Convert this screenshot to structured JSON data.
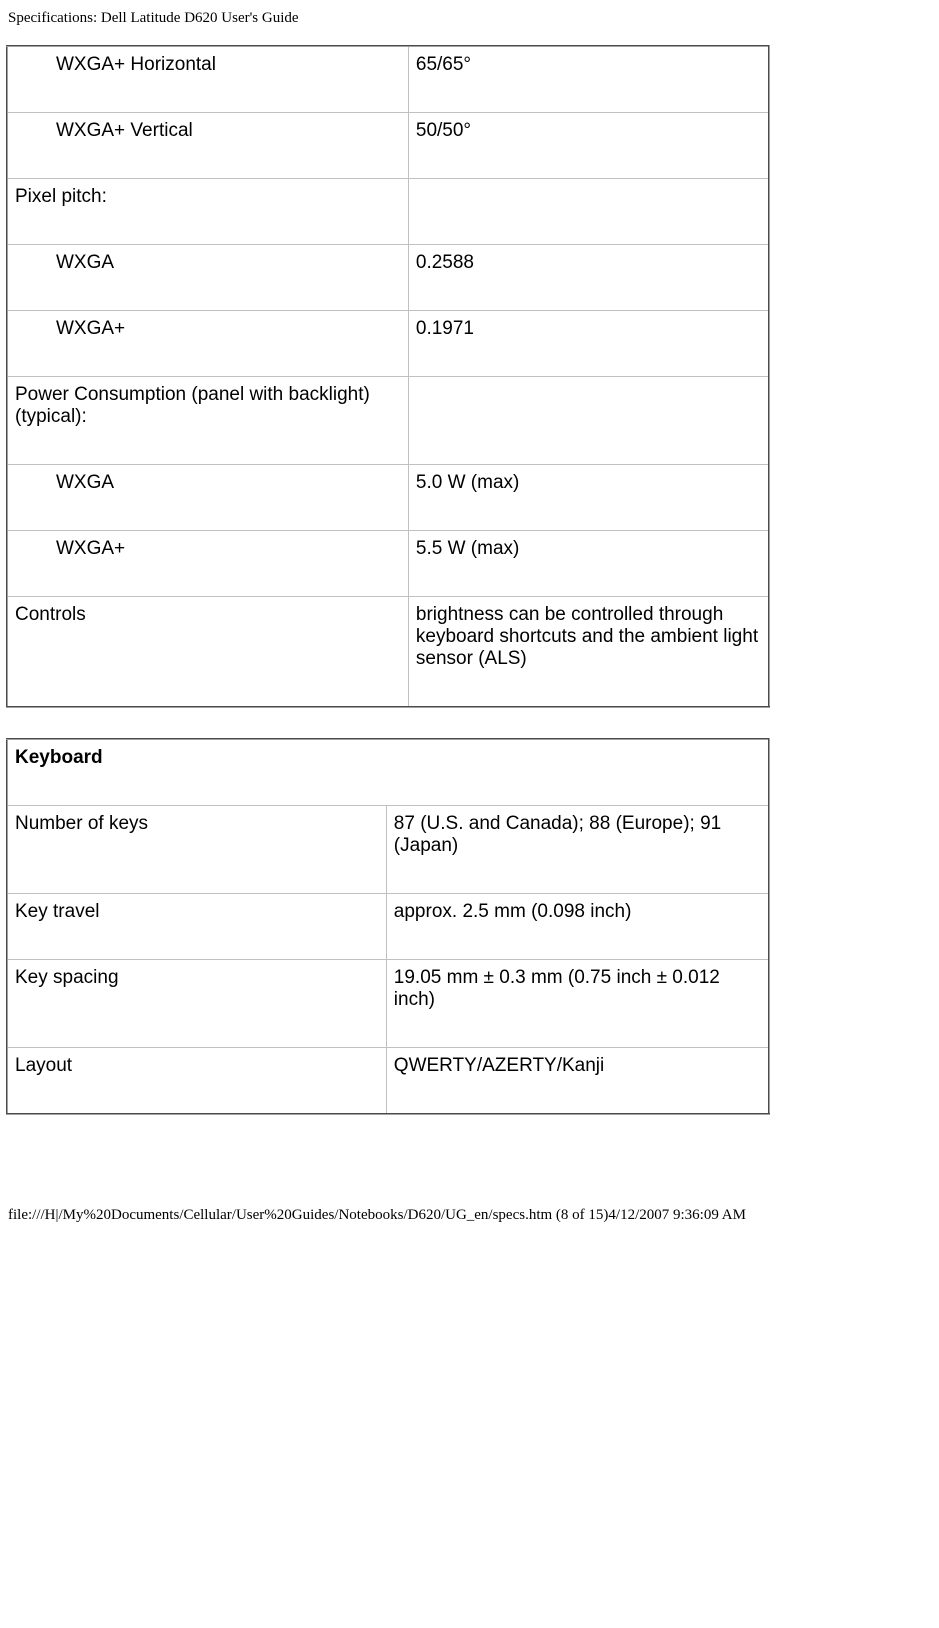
{
  "page_title": "Specifications: Dell Latitude D620 User's Guide",
  "table1": {
    "rows": [
      {
        "label": "WXGA+ Horizontal",
        "value": "65/65°",
        "indent": true
      },
      {
        "label": "WXGA+ Vertical",
        "value": "50/50°",
        "indent": true
      },
      {
        "label": "Pixel pitch:",
        "value": "",
        "indent": false
      },
      {
        "label": "WXGA",
        "value": "0.2588",
        "indent": true
      },
      {
        "label": "WXGA+",
        "value": "0.1971",
        "indent": true
      },
      {
        "label": "Power Consumption (panel with backlight) (typical):",
        "value": "",
        "indent": false
      },
      {
        "label": "WXGA",
        "value": "5.0 W (max)",
        "indent": true
      },
      {
        "label": "WXGA+",
        "value": "5.5 W (max)",
        "indent": true
      },
      {
        "label": "Controls",
        "value": "brightness can be controlled through keyboard shortcuts and the ambient light sensor (ALS)",
        "indent": false
      }
    ]
  },
  "table2": {
    "header": "Keyboard",
    "rows": [
      {
        "label": "Number of keys",
        "value": "87 (U.S. and Canada); 88 (Europe); 91 (Japan)"
      },
      {
        "label": "Key travel",
        "value": "approx. 2.5 mm (0.098 inch)"
      },
      {
        "label": "Key spacing",
        "value": "19.05 mm ± 0.3 mm (0.75 inch ± 0.012 inch)"
      },
      {
        "label": "Layout",
        "value": "QWERTY/AZERTY/Kanji"
      }
    ]
  },
  "footer": "file:///H|/My%20Documents/Cellular/User%20Guides/Notebooks/D620/UG_en/specs.htm (8 of 15)4/12/2007 9:36:09 AM"
}
